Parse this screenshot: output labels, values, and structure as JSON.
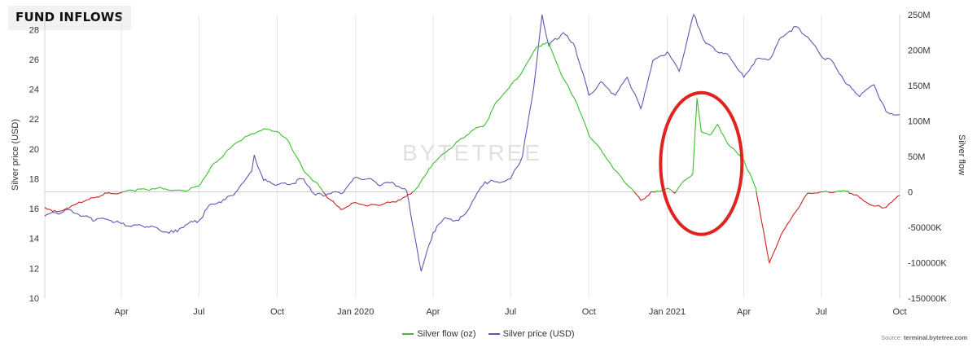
{
  "header": {
    "title": "FUND INFLOWS"
  },
  "watermark": "BYTETREE",
  "source": {
    "label": "Source:",
    "value": "terminal.bytetree.com"
  },
  "chart_data": {
    "type": "line",
    "x_ticks": [
      "Apr",
      "Jul",
      "Oct",
      "Jan 2020",
      "Apr",
      "Jul",
      "Oct",
      "Jan 2021",
      "Apr",
      "Jul",
      "Oct"
    ],
    "y_left": {
      "label": "Silver price (USD)",
      "range": [
        10,
        29
      ],
      "ticks": [
        "10",
        "12",
        "14",
        "16",
        "18",
        "20",
        "22",
        "24",
        "26",
        "28"
      ]
    },
    "y_right": {
      "label": "Silver flow",
      "range": [
        -150000000,
        250000000
      ],
      "ticks": [
        "-150000K",
        "-100000K",
        "-50000K",
        "0",
        "50M",
        "100M",
        "150M",
        "200M",
        "250M"
      ]
    },
    "grid": "vertical",
    "legend_position": "bottom-center",
    "colors": {
      "flow_positive": "#3cbf2f",
      "flow_negative": "#cc2222",
      "price": "#5a5ab5",
      "highlight_circle": "#e0231f"
    },
    "series": [
      {
        "name": "Silver flow (oz)",
        "axis": "right",
        "unit": "M",
        "points": [
          [
            "2019-01-01",
            -22
          ],
          [
            "2019-01-15",
            -28
          ],
          [
            "2019-02-01",
            -20
          ],
          [
            "2019-02-15",
            -14
          ],
          [
            "2019-03-01",
            -8
          ],
          [
            "2019-03-15",
            -2
          ],
          [
            "2019-04-01",
            -1
          ],
          [
            "2019-04-15",
            2
          ],
          [
            "2019-05-01",
            3
          ],
          [
            "2019-05-15",
            6
          ],
          [
            "2019-06-01",
            2
          ],
          [
            "2019-06-15",
            1
          ],
          [
            "2019-07-01",
            8
          ],
          [
            "2019-07-15",
            35
          ],
          [
            "2019-08-01",
            55
          ],
          [
            "2019-08-15",
            70
          ],
          [
            "2019-09-01",
            82
          ],
          [
            "2019-09-15",
            89
          ],
          [
            "2019-10-01",
            85
          ],
          [
            "2019-10-15",
            70
          ],
          [
            "2019-11-01",
            30
          ],
          [
            "2019-11-15",
            14
          ],
          [
            "2019-12-01",
            -10
          ],
          [
            "2019-12-15",
            -25
          ],
          [
            "2020-01-01",
            -15
          ],
          [
            "2020-01-15",
            -20
          ],
          [
            "2020-02-01",
            -18
          ],
          [
            "2020-02-15",
            -14
          ],
          [
            "2020-03-01",
            -6
          ],
          [
            "2020-03-15",
            8
          ],
          [
            "2020-04-01",
            40
          ],
          [
            "2020-04-15",
            55
          ],
          [
            "2020-05-01",
            72
          ],
          [
            "2020-05-15",
            85
          ],
          [
            "2020-06-01",
            95
          ],
          [
            "2020-06-15",
            128
          ],
          [
            "2020-07-01",
            150
          ],
          [
            "2020-07-15",
            170
          ],
          [
            "2020-08-01",
            205
          ],
          [
            "2020-08-15",
            210
          ],
          [
            "2020-09-01",
            160
          ],
          [
            "2020-09-15",
            130
          ],
          [
            "2020-10-01",
            80
          ],
          [
            "2020-10-15",
            60
          ],
          [
            "2020-11-01",
            30
          ],
          [
            "2020-11-15",
            10
          ],
          [
            "2020-12-01",
            -12
          ],
          [
            "2020-12-15",
            0
          ],
          [
            "2021-01-01",
            5
          ],
          [
            "2021-01-10",
            -2
          ],
          [
            "2021-01-20",
            15
          ],
          [
            "2021-01-31",
            25
          ],
          [
            "2021-02-05",
            132
          ],
          [
            "2021-02-10",
            85
          ],
          [
            "2021-02-20",
            80
          ],
          [
            "2021-03-01",
            95
          ],
          [
            "2021-03-15",
            65
          ],
          [
            "2021-04-01",
            45
          ],
          [
            "2021-04-15",
            5
          ],
          [
            "2021-05-01",
            -100
          ],
          [
            "2021-05-15",
            -60
          ],
          [
            "2021-06-01",
            -28
          ],
          [
            "2021-06-15",
            -2
          ],
          [
            "2021-07-01",
            0
          ],
          [
            "2021-07-15",
            -1
          ],
          [
            "2021-08-01",
            1
          ],
          [
            "2021-08-15",
            -8
          ],
          [
            "2021-09-01",
            -20
          ],
          [
            "2021-09-15",
            -22
          ],
          [
            "2021-10-01",
            -5
          ]
        ]
      },
      {
        "name": "Silver price (USD)",
        "axis": "left",
        "unit": "USD",
        "points": [
          [
            "2019-01-01",
            15.5
          ],
          [
            "2019-01-15",
            15.7
          ],
          [
            "2019-02-01",
            15.9
          ],
          [
            "2019-02-15",
            15.5
          ],
          [
            "2019-03-01",
            15.2
          ],
          [
            "2019-03-15",
            15.3
          ],
          [
            "2019-04-01",
            15.0
          ],
          [
            "2019-04-15",
            14.9
          ],
          [
            "2019-05-01",
            14.8
          ],
          [
            "2019-05-15",
            14.6
          ],
          [
            "2019-06-01",
            14.4
          ],
          [
            "2019-06-15",
            14.9
          ],
          [
            "2019-07-01",
            15.2
          ],
          [
            "2019-07-15",
            16.3
          ],
          [
            "2019-08-01",
            16.6
          ],
          [
            "2019-08-15",
            17.2
          ],
          [
            "2019-09-01",
            18.5
          ],
          [
            "2019-09-04",
            19.6
          ],
          [
            "2019-09-15",
            17.9
          ],
          [
            "2019-10-01",
            17.6
          ],
          [
            "2019-10-15",
            17.6
          ],
          [
            "2019-11-01",
            18.0
          ],
          [
            "2019-11-15",
            16.9
          ],
          [
            "2019-12-01",
            17.0
          ],
          [
            "2019-12-15",
            17.0
          ],
          [
            "2020-01-01",
            18.1
          ],
          [
            "2020-01-15",
            18.0
          ],
          [
            "2020-02-01",
            17.6
          ],
          [
            "2020-02-15",
            17.7
          ],
          [
            "2020-03-01",
            17.2
          ],
          [
            "2020-03-18",
            11.8
          ],
          [
            "2020-04-01",
            14.4
          ],
          [
            "2020-04-15",
            15.4
          ],
          [
            "2020-05-01",
            15.2
          ],
          [
            "2020-05-15",
            16.2
          ],
          [
            "2020-06-01",
            17.8
          ],
          [
            "2020-06-15",
            17.8
          ],
          [
            "2020-07-01",
            18.0
          ],
          [
            "2020-07-15",
            19.5
          ],
          [
            "2020-07-28",
            24.0
          ],
          [
            "2020-08-07",
            29.0
          ],
          [
            "2020-08-15",
            26.9
          ],
          [
            "2020-09-01",
            27.8
          ],
          [
            "2020-09-15",
            26.8
          ],
          [
            "2020-10-01",
            23.6
          ],
          [
            "2020-10-15",
            24.5
          ],
          [
            "2020-11-01",
            23.6
          ],
          [
            "2020-11-15",
            24.8
          ],
          [
            "2020-12-01",
            22.7
          ],
          [
            "2020-12-15",
            25.9
          ],
          [
            "2021-01-01",
            26.5
          ],
          [
            "2021-01-15",
            25.2
          ],
          [
            "2021-02-01",
            29.0
          ],
          [
            "2021-02-15",
            27.1
          ],
          [
            "2021-03-01",
            26.5
          ],
          [
            "2021-03-15",
            26.2
          ],
          [
            "2021-04-01",
            24.8
          ],
          [
            "2021-04-15",
            26.0
          ],
          [
            "2021-05-01",
            26.0
          ],
          [
            "2021-05-15",
            27.5
          ],
          [
            "2021-06-01",
            28.2
          ],
          [
            "2021-06-15",
            27.5
          ],
          [
            "2021-07-01",
            26.2
          ],
          [
            "2021-07-15",
            25.8
          ],
          [
            "2021-08-01",
            24.3
          ],
          [
            "2021-08-15",
            23.5
          ],
          [
            "2021-09-01",
            24.3
          ],
          [
            "2021-09-15",
            22.5
          ],
          [
            "2021-10-01",
            22.3
          ]
        ]
      }
    ],
    "annotations": [
      {
        "type": "ellipse",
        "date": "2021-02-10",
        "flow_center": 40
      }
    ]
  },
  "legend": {
    "items": [
      "Silver flow (oz)",
      "Silver price (USD)"
    ]
  }
}
